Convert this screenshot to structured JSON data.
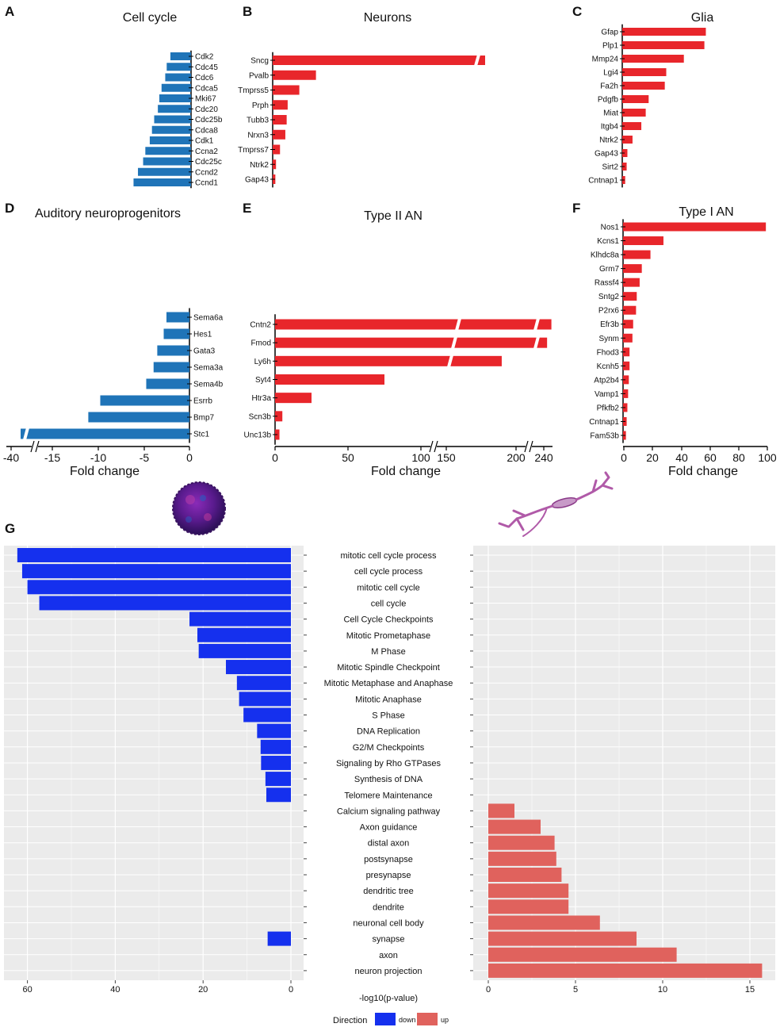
{
  "colors": {
    "blue_bar": "#1f74b8",
    "red_bar": "#e8262b",
    "go_down": "#1530ee",
    "go_up": "#e0625d",
    "panel_bg": "#ebebeb",
    "grid": "#ffffff"
  },
  "images": {
    "left_icon": "neurosphere-cell-icon",
    "right_icon": "neuron-icon"
  },
  "chart_data": [
    {
      "id": "A",
      "panel_label": "A",
      "title": "Cell cycle",
      "type": "bar",
      "orientation": "horizontal",
      "direction": "down",
      "categories": [
        "Cdk2",
        "Cdc45",
        "Cdc6",
        "Cdca5",
        "Mki67",
        "Cdc20",
        "Cdc25b",
        "Cdca8",
        "Cdk1",
        "Ccna2",
        "Cdc25c",
        "Ccnd2",
        "Ccnd1"
      ],
      "values": [
        -2.8,
        -3.3,
        -3.5,
        -4.0,
        -4.3,
        -4.5,
        -5.0,
        -5.3,
        -5.6,
        -6.2,
        -6.5,
        -7.2,
        -7.8
      ],
      "xlim": [
        -8,
        0
      ],
      "xlabel": ""
    },
    {
      "id": "B",
      "panel_label": "B",
      "title": "Neurons",
      "type": "bar",
      "orientation": "horizontal",
      "direction": "up",
      "categories": [
        "Sncg",
        "Pvalb",
        "Tmprss5",
        "Prph",
        "Tubb3",
        "Nrxn3",
        "Tmprss7",
        "Ntrk2",
        "Gap43"
      ],
      "values": [
        60,
        13,
        8,
        4.5,
        4.2,
        3.8,
        2.2,
        1.0,
        0.8
      ],
      "axis_break": true,
      "xlabel": ""
    },
    {
      "id": "C",
      "panel_label": "C",
      "title": "Glia",
      "type": "bar",
      "orientation": "horizontal",
      "direction": "up",
      "categories": [
        "Gfap",
        "Plp1",
        "Mmp24",
        "Lgi4",
        "Fa2h",
        "Pdgfb",
        "Miat",
        "Itgb4",
        "Ntrk2",
        "Gap43",
        "Sirt2",
        "Cntnap1"
      ],
      "values": [
        57,
        56,
        42,
        30,
        29,
        18,
        16,
        13,
        7,
        3.5,
        3,
        2
      ],
      "xlim": [
        0,
        60
      ],
      "xlabel": ""
    },
    {
      "id": "D",
      "panel_label": "D",
      "title": "Auditory neuroprogenitors",
      "type": "bar",
      "orientation": "horizontal",
      "direction": "down",
      "categories": [
        "Sema6a",
        "Hes1",
        "Gata3",
        "Sema3a",
        "Sema4b",
        "Esrrb",
        "Bmp7",
        "Stc1"
      ],
      "values": [
        -2.5,
        -2.8,
        -3.5,
        -3.9,
        -4.7,
        -9.7,
        -11.0,
        -38.0
      ],
      "ticks": [
        "-40",
        "-15",
        "-10",
        "-5",
        "0"
      ],
      "xlabel": "Fold change",
      "axis_break": true
    },
    {
      "id": "E",
      "panel_label": "E",
      "title": "Type II AN",
      "type": "bar",
      "orientation": "horizontal",
      "direction": "up",
      "categories": [
        "Cntn2",
        "Fmod",
        "Ly6h",
        "Syt4",
        "Htr3a",
        "Scn3b",
        "Unc13b"
      ],
      "values": [
        240,
        232,
        195,
        75,
        25,
        5,
        3
      ],
      "ticks": [
        "0",
        "50",
        "100",
        "150",
        "200",
        "240"
      ],
      "xlabel": "Fold change",
      "axis_break": true
    },
    {
      "id": "F",
      "panel_label": "F",
      "title": "Type I AN",
      "type": "bar",
      "orientation": "horizontal",
      "direction": "up",
      "categories": [
        "Nos1",
        "Kcns1",
        "Klhdc8a",
        "Grm7",
        "Rassf4",
        "Sntg2",
        "P2rx6",
        "Efr3b",
        "Synm",
        "Fhod3",
        "Kcnh5",
        "Atp2b4",
        "Vamp1",
        "Pfkfb2",
        "Cntnap1",
        "Fam53b"
      ],
      "values": [
        99,
        28,
        19,
        13,
        11.5,
        9.5,
        9,
        7,
        6.5,
        4.5,
        4.5,
        4,
        3.5,
        3,
        2.5,
        2
      ],
      "xlim": [
        0,
        100
      ],
      "ticks": [
        "0",
        "20",
        "40",
        "60",
        "80",
        "100"
      ],
      "xlabel": "Fold change"
    },
    {
      "id": "G",
      "panel_label": "G",
      "type": "bar",
      "orientation": "horizontal",
      "diverging": true,
      "categories": [
        "mitotic cell cycle process",
        "cell cycle process",
        "mitotic cell cycle",
        "cell cycle",
        "Cell Cycle Checkpoints",
        "Mitotic Prometaphase",
        "M Phase",
        "Mitotic Spindle Checkpoint",
        "Mitotic Metaphase and Anaphase",
        "Mitotic Anaphase",
        "S Phase",
        "DNA Replication",
        "G2/M Checkpoints",
        "Signaling by Rho GTPases",
        "Synthesis of DNA",
        "Telomere Maintenance",
        "Calcium signaling pathway",
        "Axon guidance",
        "distal axon",
        "postsynapse",
        "presynapse",
        "dendritic tree",
        "dendrite",
        "neuronal cell body",
        "synapse",
        "axon",
        "neuron projection"
      ],
      "series": [
        {
          "name": "down",
          "values": [
            62.3,
            61.2,
            60.0,
            57.3,
            23.1,
            21.3,
            21.0,
            14.8,
            12.3,
            11.8,
            10.8,
            7.7,
            6.9,
            6.8,
            5.8,
            5.6,
            null,
            null,
            null,
            null,
            null,
            null,
            null,
            null,
            5.3,
            null,
            null
          ]
        },
        {
          "name": "up",
          "values": [
            null,
            null,
            null,
            null,
            null,
            null,
            null,
            null,
            null,
            null,
            null,
            null,
            null,
            null,
            null,
            null,
            1.5,
            3.0,
            3.8,
            3.9,
            4.2,
            4.6,
            4.6,
            6.4,
            8.5,
            10.8,
            15.7
          ]
        }
      ],
      "left_xlim": [
        0,
        65
      ],
      "right_xlim": [
        0,
        16
      ],
      "left_ticks": [
        "60",
        "40",
        "20",
        "0"
      ],
      "right_ticks": [
        "0",
        "5",
        "10",
        "15"
      ],
      "xlabel": "-log10(p-value)",
      "legend": {
        "title": "Direction",
        "entries": [
          "down",
          "up"
        ],
        "placement": "bottom-center"
      }
    }
  ]
}
